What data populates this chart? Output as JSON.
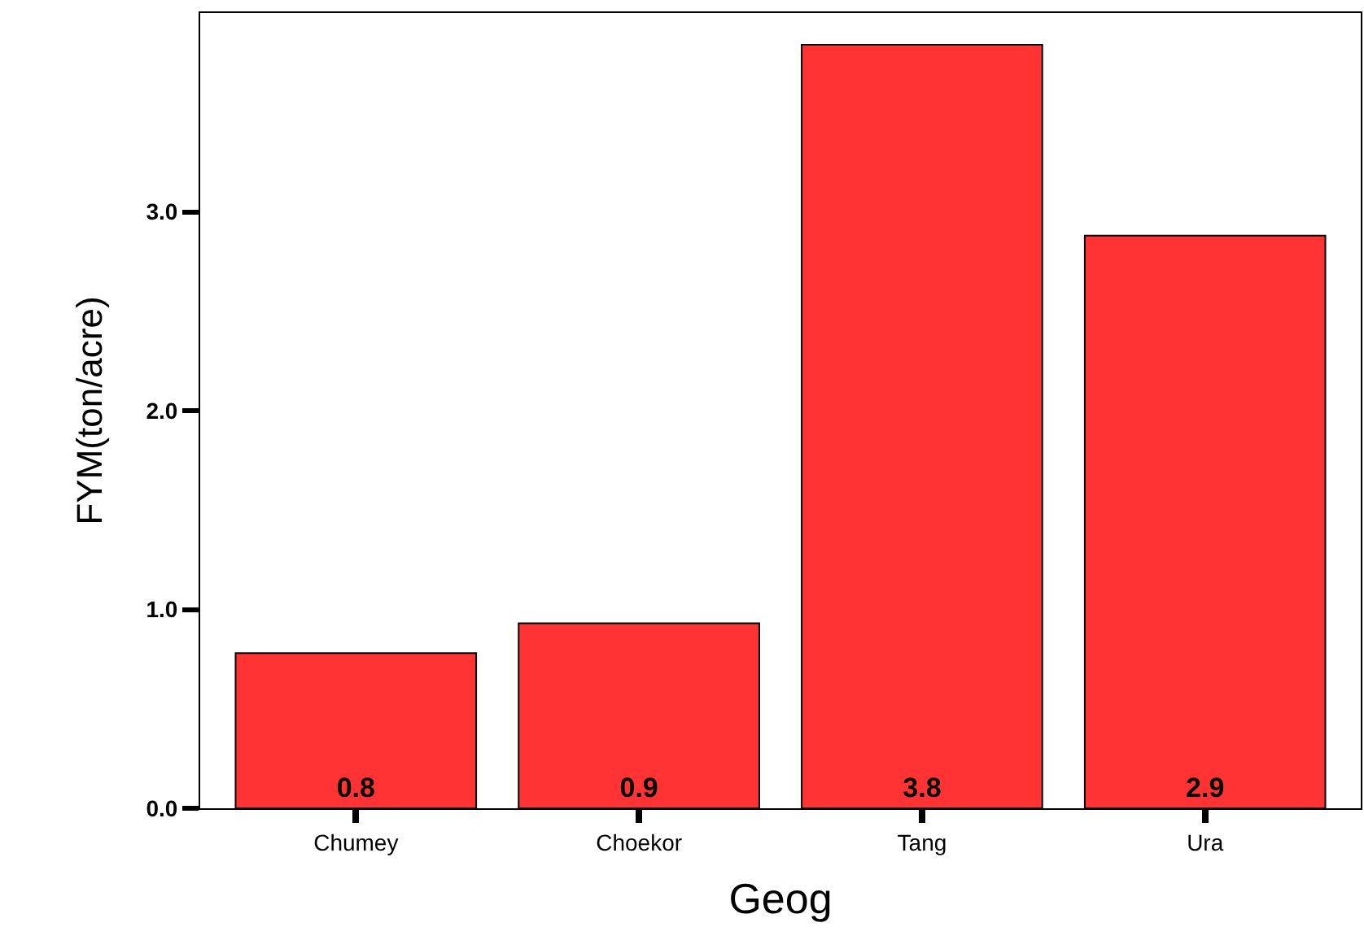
{
  "chart_data": {
    "type": "bar",
    "xlabel": "Geog",
    "ylabel": "FYM(ton/acre)",
    "categories": [
      "Chumey",
      "Choekor",
      "Tang",
      "Ura"
    ],
    "values": [
      0.78,
      0.93,
      3.84,
      2.88
    ],
    "value_labels": [
      "0.8",
      "0.9",
      "3.8",
      "2.9"
    ],
    "color": "#ff3333",
    "ylim": [
      0,
      4.0
    ],
    "yticks": [
      {
        "value": 0,
        "label": "0.0"
      },
      {
        "value": 1,
        "label": "1.0"
      },
      {
        "value": 2,
        "label": "2.0"
      },
      {
        "value": 3,
        "label": "3.0"
      }
    ],
    "legend": false
  }
}
